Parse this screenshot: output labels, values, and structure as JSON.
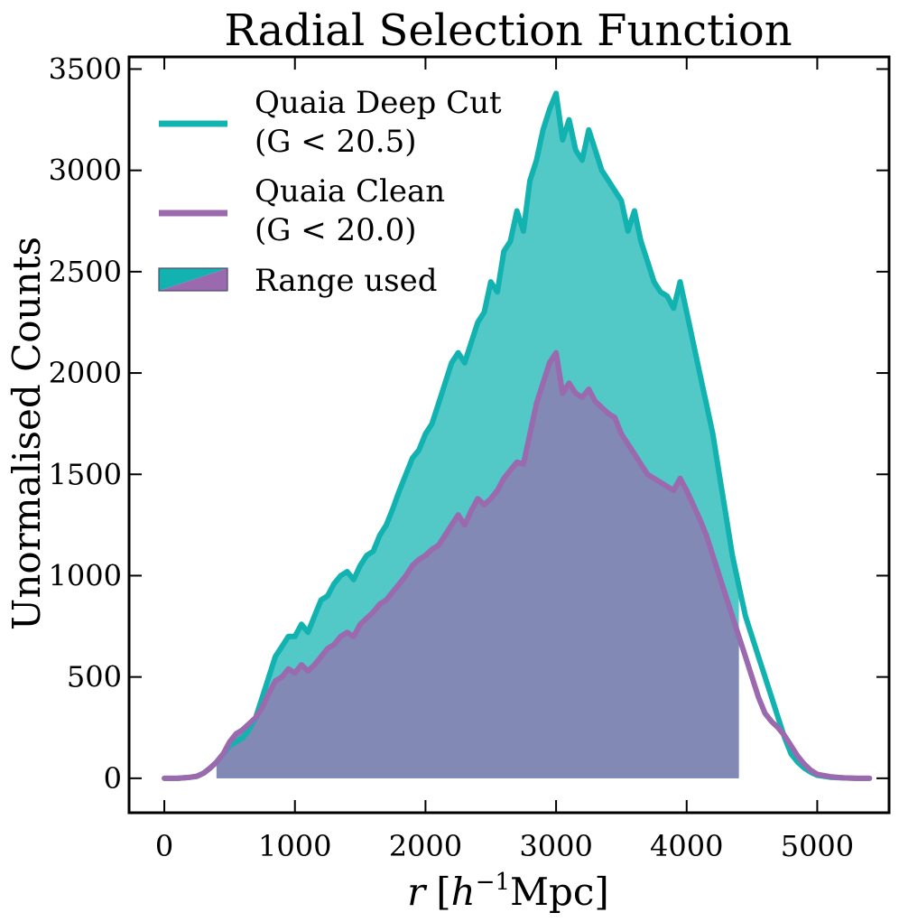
{
  "chart_data": {
    "type": "area",
    "title": "Radial Selection Function",
    "xlabel": "r [h⁻¹Mpc]",
    "xlabel_parts": {
      "var": "r",
      "open": "[",
      "h": "h",
      "exp": "−1",
      "unit": "Mpc]"
    },
    "ylabel": "Unormalised Counts",
    "xlim": [
      -270,
      5550
    ],
    "ylim": [
      -170,
      3560
    ],
    "xticks": [
      0,
      1000,
      2000,
      3000,
      4000,
      5000
    ],
    "yticks": [
      0,
      500,
      1000,
      1500,
      2000,
      2500,
      3000,
      3500
    ],
    "grid": false,
    "legend_position": "top-left",
    "range_used": [
      400,
      4400
    ],
    "x": [
      0,
      100,
      200,
      250,
      300,
      350,
      400,
      450,
      500,
      550,
      600,
      650,
      700,
      750,
      800,
      850,
      900,
      950,
      1000,
      1050,
      1100,
      1150,
      1200,
      1250,
      1300,
      1350,
      1400,
      1450,
      1500,
      1550,
      1600,
      1650,
      1700,
      1750,
      1800,
      1850,
      1900,
      1950,
      2000,
      2050,
      2100,
      2150,
      2200,
      2250,
      2300,
      2350,
      2400,
      2450,
      2500,
      2550,
      2600,
      2650,
      2700,
      2750,
      2800,
      2850,
      2900,
      2950,
      3000,
      3050,
      3100,
      3150,
      3200,
      3250,
      3300,
      3350,
      3400,
      3450,
      3500,
      3550,
      3600,
      3650,
      3700,
      3750,
      3800,
      3850,
      3900,
      3950,
      4000,
      4050,
      4100,
      4150,
      4200,
      4250,
      4300,
      4350,
      4400,
      4450,
      4500,
      4550,
      4600,
      4650,
      4700,
      4750,
      4800,
      4850,
      4900,
      4950,
      5000,
      5100,
      5200,
      5300,
      5400
    ],
    "series": [
      {
        "name": "Quaia Deep Cut",
        "label_line1": "Quaia Deep Cut",
        "label_line2": "(G < 20.5)",
        "color": "#12b2b0",
        "fill_color": "#52c9c7",
        "values": [
          0,
          0,
          5,
          10,
          25,
          50,
          80,
          120,
          160,
          180,
          200,
          240,
          300,
          400,
          500,
          600,
          650,
          700,
          700,
          760,
          720,
          800,
          880,
          900,
          960,
          1000,
          1020,
          980,
          1050,
          1100,
          1120,
          1200,
          1250,
          1330,
          1420,
          1500,
          1580,
          1620,
          1700,
          1750,
          1850,
          1950,
          2050,
          2100,
          2050,
          2150,
          2250,
          2300,
          2450,
          2400,
          2600,
          2650,
          2800,
          2700,
          2950,
          3050,
          3200,
          3300,
          3380,
          3150,
          3250,
          3100,
          3050,
          3200,
          3100,
          3000,
          2950,
          2900,
          2850,
          2700,
          2800,
          2650,
          2550,
          2450,
          2400,
          2380,
          2320,
          2450,
          2300,
          2150,
          2000,
          1850,
          1700,
          1500,
          1300,
          1100,
          950,
          800,
          700,
          600,
          500,
          400,
          300,
          200,
          120,
          80,
          50,
          30,
          15,
          5,
          2,
          0,
          0
        ]
      },
      {
        "name": "Quaia Clean",
        "label_line1": "Quaia Clean",
        "label_line2": "(G < 20.0)",
        "color": "#9b6aae",
        "fill_color": "#8189b4",
        "values": [
          0,
          0,
          5,
          10,
          25,
          50,
          80,
          120,
          180,
          220,
          240,
          270,
          300,
          350,
          420,
          480,
          500,
          540,
          520,
          560,
          530,
          560,
          600,
          640,
          660,
          700,
          720,
          700,
          760,
          790,
          820,
          860,
          880,
          920,
          960,
          1000,
          1050,
          1080,
          1100,
          1130,
          1150,
          1200,
          1250,
          1300,
          1250,
          1320,
          1380,
          1350,
          1380,
          1420,
          1480,
          1520,
          1560,
          1550,
          1700,
          1850,
          1950,
          2050,
          2100,
          1900,
          1950,
          1900,
          1880,
          1920,
          1860,
          1830,
          1800,
          1780,
          1700,
          1650,
          1600,
          1550,
          1500,
          1480,
          1460,
          1440,
          1420,
          1480,
          1420,
          1350,
          1280,
          1200,
          1100,
          1000,
          900,
          800,
          700,
          600,
          500,
          400,
          320,
          280,
          250,
          210,
          160,
          110,
          70,
          40,
          20,
          8,
          2,
          0,
          0
        ]
      }
    ],
    "range_legend_label": "Range used"
  }
}
